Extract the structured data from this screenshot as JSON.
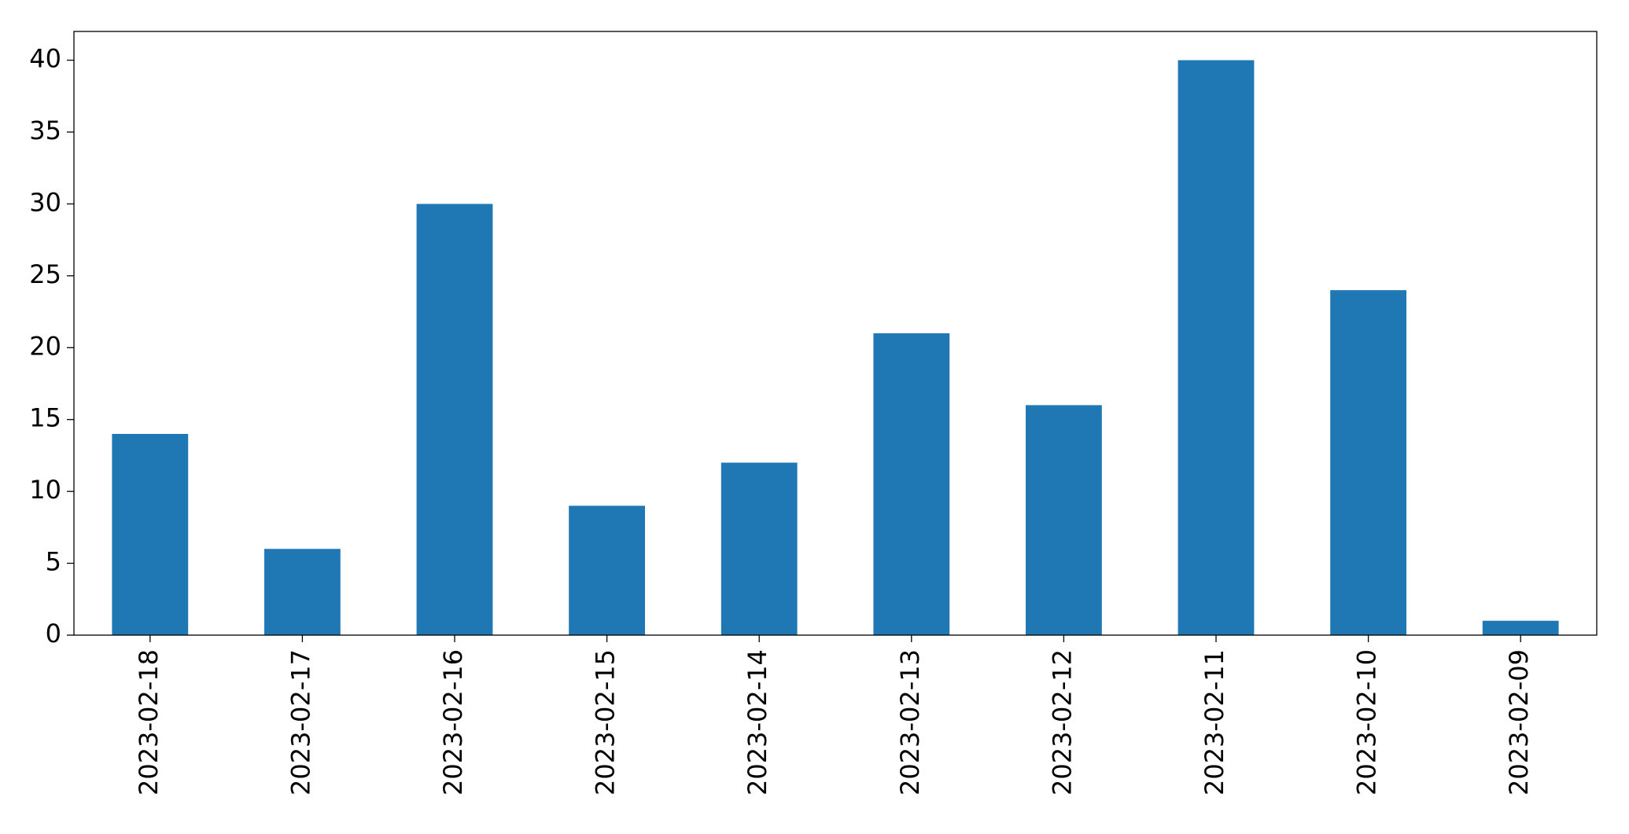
{
  "chart_data": {
    "type": "bar",
    "categories": [
      "2023-02-18",
      "2023-02-17",
      "2023-02-16",
      "2023-02-15",
      "2023-02-14",
      "2023-02-13",
      "2023-02-12",
      "2023-02-11",
      "2023-02-10",
      "2023-02-09"
    ],
    "values": [
      14,
      6,
      30,
      9,
      12,
      21,
      16,
      40,
      24,
      1
    ],
    "color": "#1f77b4",
    "ylim": [
      0,
      42
    ],
    "yticks": [
      0,
      5,
      10,
      15,
      20,
      25,
      30,
      35,
      40
    ],
    "grid": false
  }
}
